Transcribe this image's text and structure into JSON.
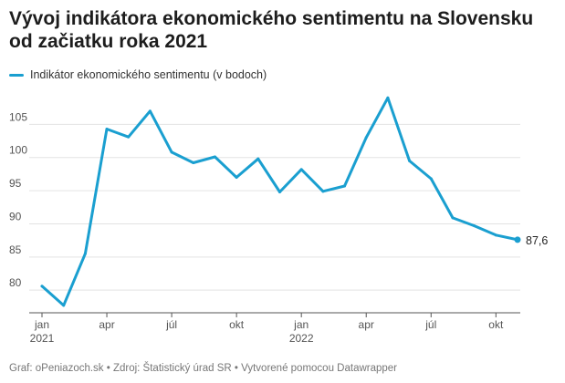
{
  "title": "Vývoj indikátora ekonomického sentimentu na Slovensku od začiatku roka 2021",
  "footer": "Graf: oPeniazoch.sk • Zdroj: Štatistický úrad SR • Vytvorené pomocou Datawrapper",
  "colors": {
    "line": "#1a9fd0",
    "grid": "#e3e3e3",
    "axis": "#555555"
  },
  "chart_data": {
    "type": "line",
    "title": "Vývoj indikátora ekonomického sentimentu na Slovensku od začiatku roka 2021",
    "legend_position": "top-left",
    "grid": true,
    "ylim": [
      77,
      110
    ],
    "y_ticks": [
      80,
      85,
      90,
      95,
      100,
      105
    ],
    "x_ticks": [
      {
        "i": 0,
        "label": "jan",
        "sub": "2021"
      },
      {
        "i": 3,
        "label": "apr",
        "sub": ""
      },
      {
        "i": 6,
        "label": "júl",
        "sub": ""
      },
      {
        "i": 9,
        "label": "okt",
        "sub": ""
      },
      {
        "i": 12,
        "label": "jan",
        "sub": "2022"
      },
      {
        "i": 15,
        "label": "apr",
        "sub": ""
      },
      {
        "i": 18,
        "label": "júl",
        "sub": ""
      },
      {
        "i": 21,
        "label": "okt",
        "sub": ""
      }
    ],
    "series": [
      {
        "name": "Indikátor ekonomického sentimentu (v bodoch)",
        "values": [
          80.6,
          77.7,
          85.5,
          104.3,
          103.1,
          107.0,
          100.8,
          99.2,
          100.1,
          97.0,
          99.8,
          94.8,
          98.2,
          94.9,
          95.7,
          103.0,
          109.0,
          99.5,
          96.8,
          90.9,
          89.7,
          88.3,
          87.6
        ],
        "end_label": "87,6"
      }
    ]
  }
}
